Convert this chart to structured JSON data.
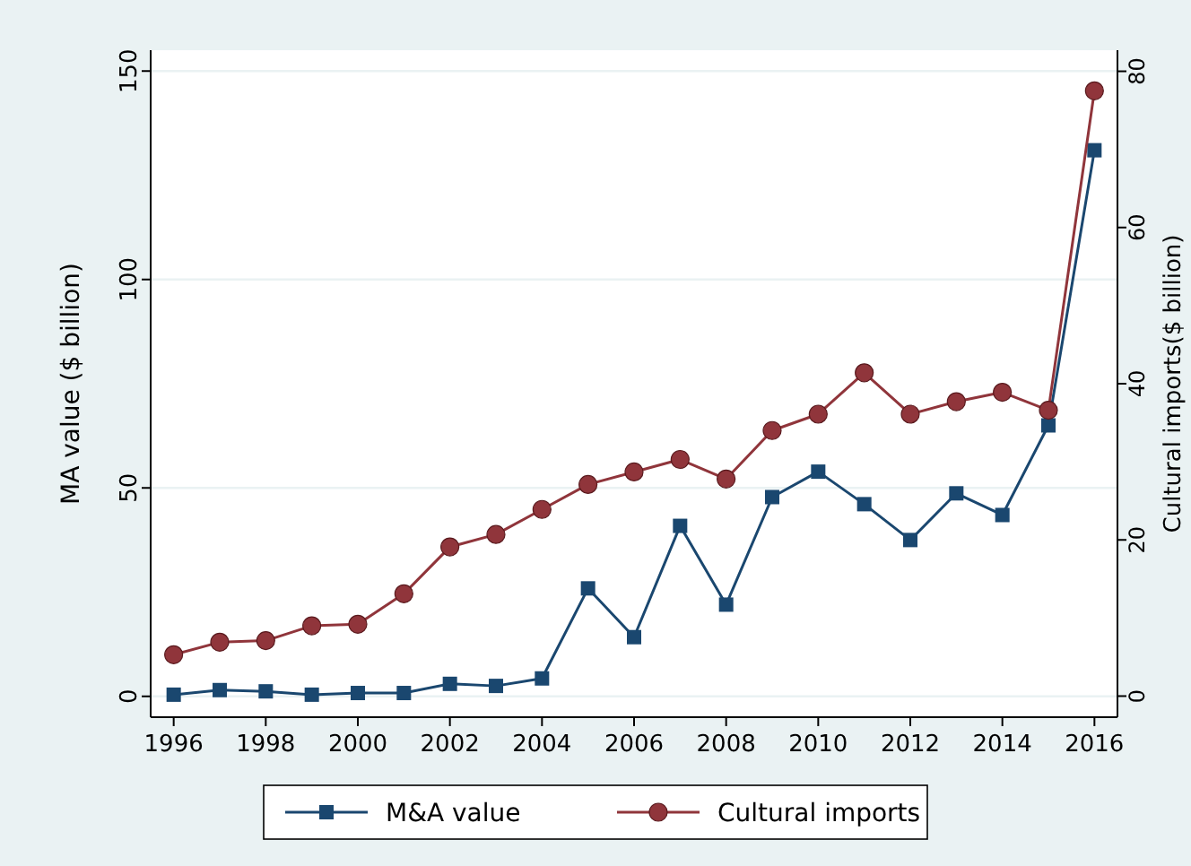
{
  "chart_data": {
    "type": "line",
    "ylabel": "MA value ($ billion)",
    "y2label": "Cultural imports($ billion)",
    "x": [
      1996,
      1997,
      1998,
      1999,
      2000,
      2001,
      2002,
      2003,
      2004,
      2005,
      2006,
      2007,
      2008,
      2009,
      2010,
      2011,
      2012,
      2013,
      2014,
      2015,
      2016
    ],
    "series": [
      {
        "name": "M&A value",
        "color": "#1a476f",
        "marker": "square",
        "values": [
          0.4,
          1.5,
          1.2,
          0.4,
          0.8,
          0.8,
          3,
          2.5,
          4.3,
          25.9,
          14.2,
          40.9,
          22,
          47.8,
          53.9,
          46.1,
          37.5,
          48.7,
          43.5,
          65,
          131
        ]
      },
      {
        "name": "Cultural imports",
        "color": "#90353b",
        "marker": "circle",
        "axis": "y2",
        "values": [
          5.3,
          6.9,
          7.1,
          9.0,
          9.2,
          13.1,
          19.1,
          20.7,
          23.9,
          27.1,
          28.7,
          30.3,
          27.8,
          34.0,
          36.1,
          41.4,
          36.1,
          37.7,
          38.9,
          36.6,
          77.5
        ]
      }
    ],
    "xlim": [
      1995.5,
      2016.5
    ],
    "xticks": [
      1996,
      1998,
      2000,
      2002,
      2004,
      2006,
      2008,
      2010,
      2012,
      2014,
      2016
    ],
    "ylim": [
      -5,
      155
    ],
    "yticks": [
      0,
      50,
      100,
      150
    ],
    "y2lim": [
      -2.7,
      82.7
    ],
    "y2ticks": [
      0,
      20,
      40,
      60,
      80
    ],
    "grid": "y",
    "legend": "bottom"
  }
}
